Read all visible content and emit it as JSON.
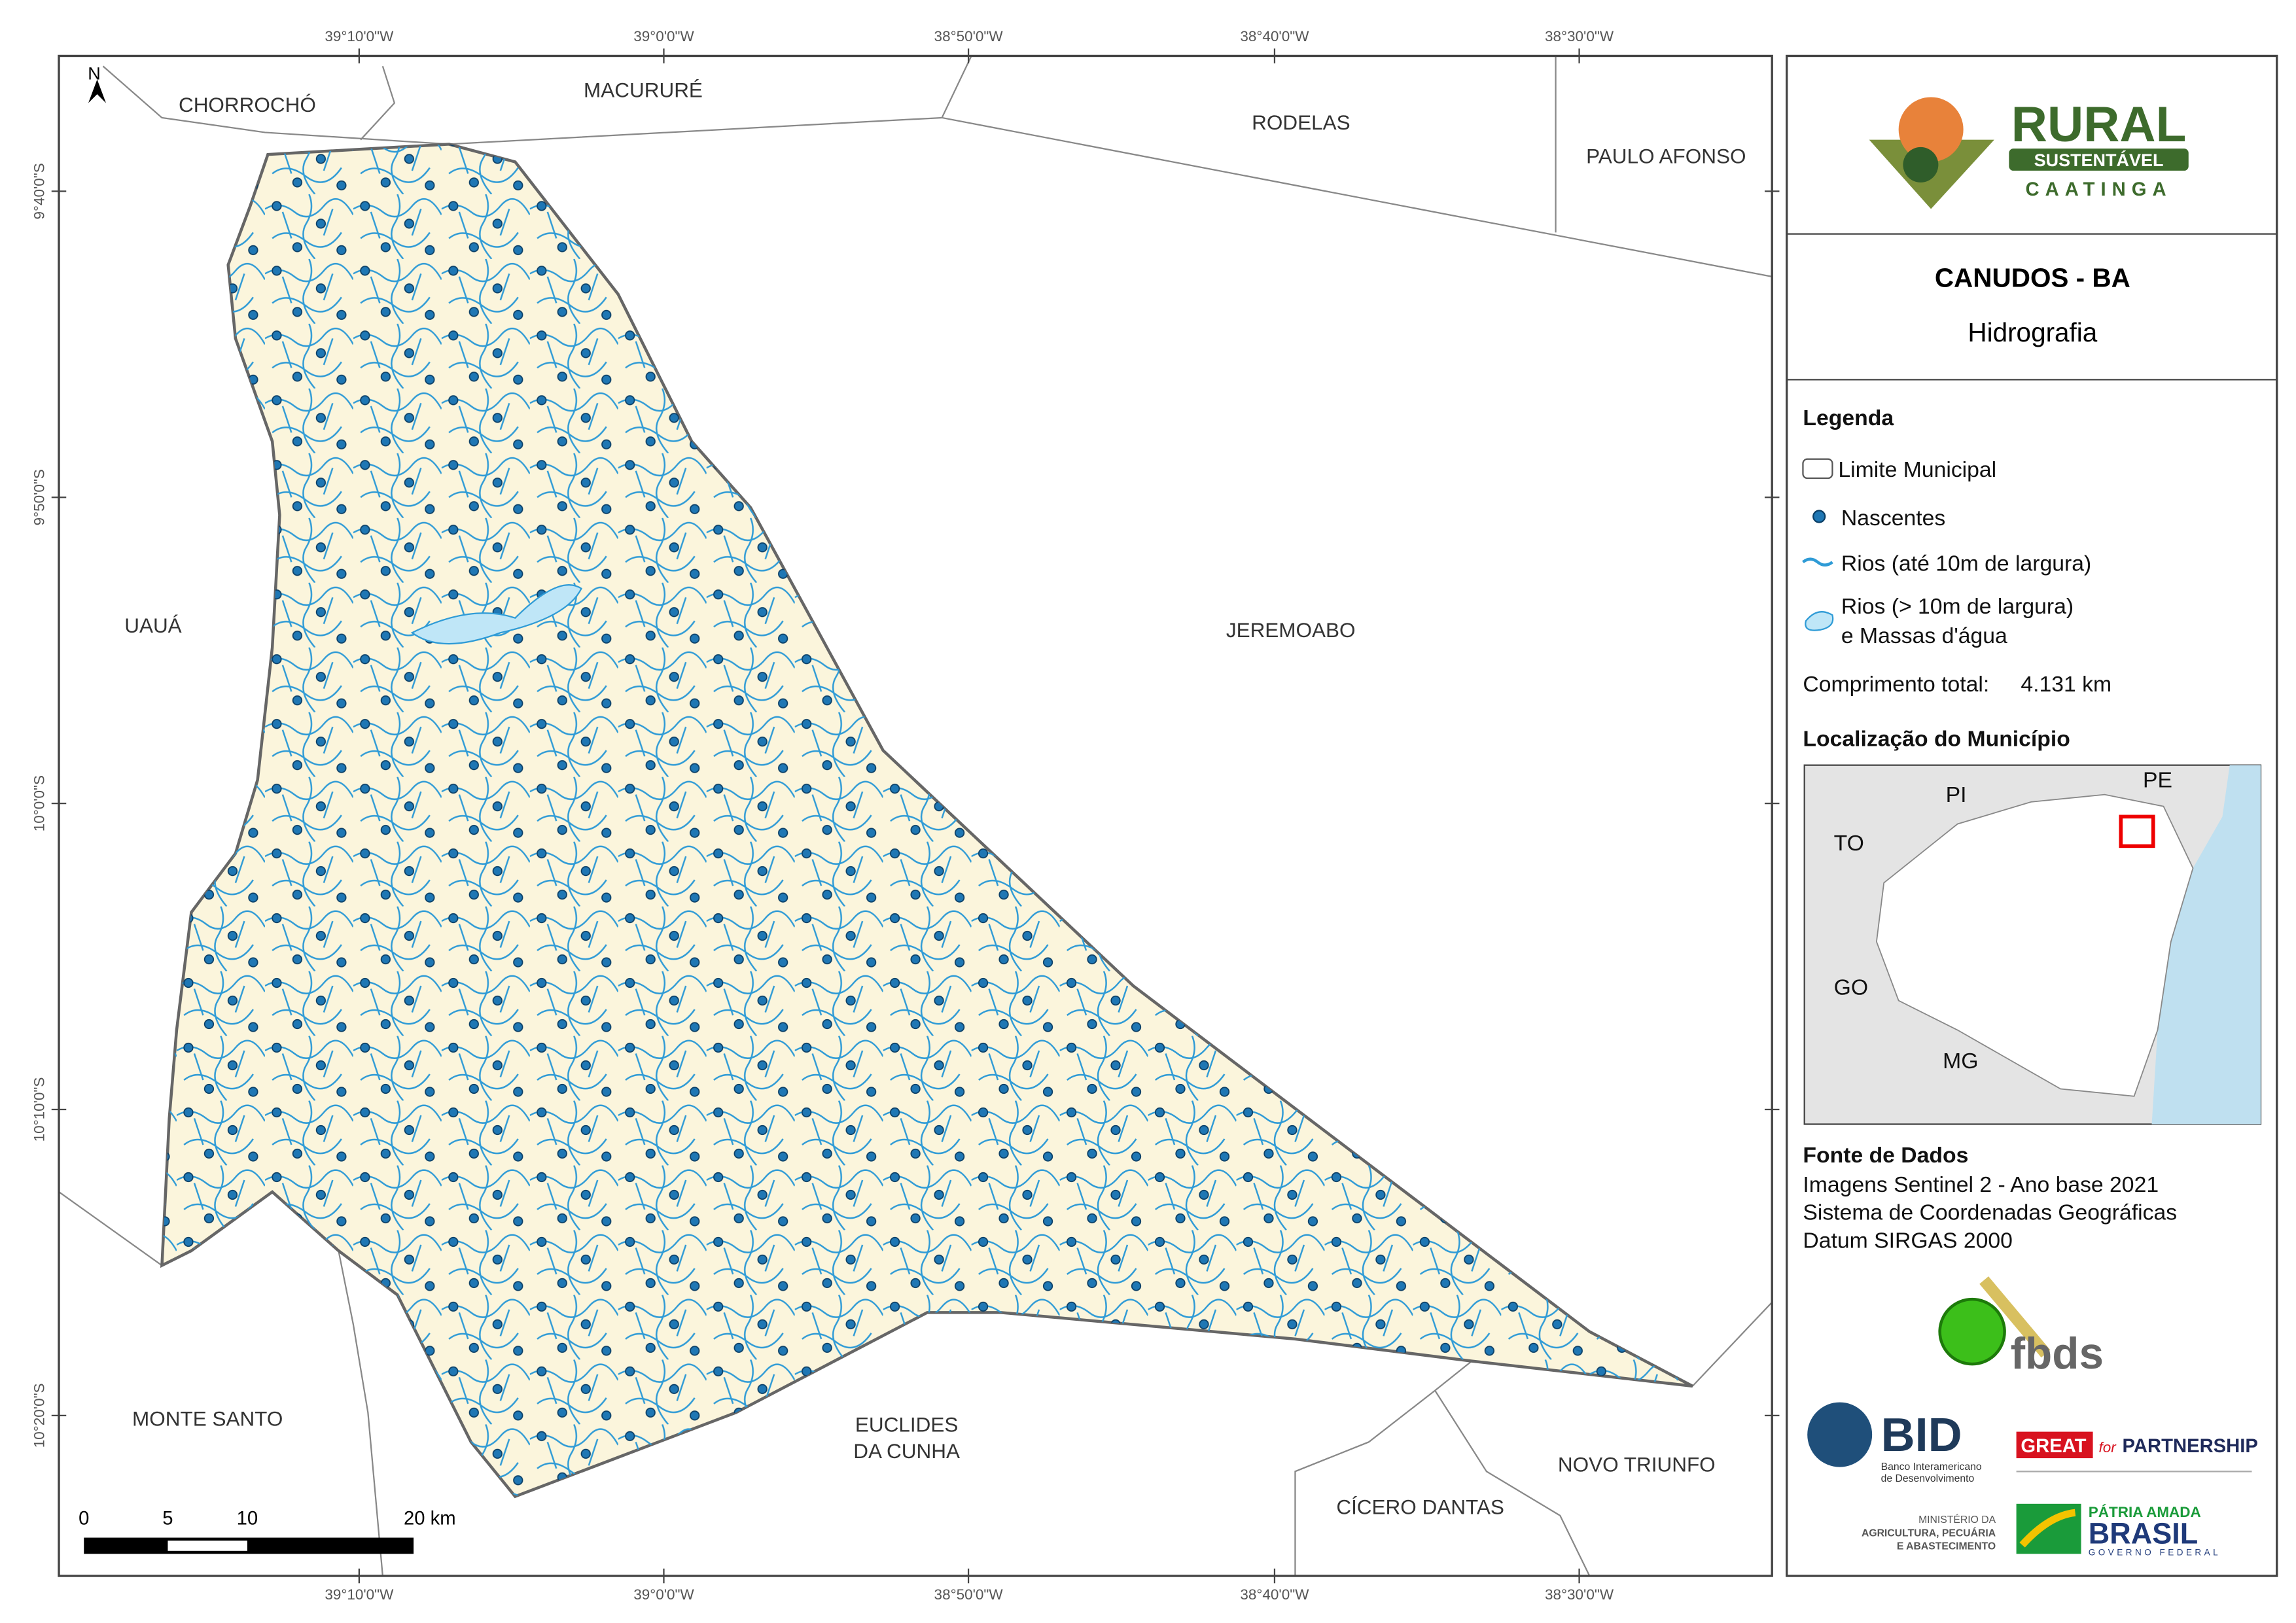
{
  "map": {
    "lon_labels_top": [
      "39°10'0\"W",
      "39°0'0\"W",
      "38°50'0\"W",
      "38°40'0\"W",
      "38°30'0\"W"
    ],
    "lon_labels_bottom": [
      "39°10'0\"W",
      "39°0'0\"W",
      "38°50'0\"W",
      "38°40'0\"W",
      "38°30'0\"W"
    ],
    "lat_labels": [
      "9°40'0\"S",
      "9°50'0\"S",
      "10°0'0\"S",
      "10°10'0\"S",
      "10°20'0\"S"
    ],
    "north": "N",
    "places": [
      "CHORROCHÓ",
      "MACURURÉ",
      "RODELAS",
      "PAULO AFONSO",
      "UAUÁ",
      "JEREMOABO",
      "MONTE SANTO",
      "EUCLIDES",
      "DA CUNHA",
      "NOVO TRIUNFO",
      "CÍCERO DANTAS"
    ],
    "scale": [
      "0",
      "5",
      "10",
      "20 km"
    ]
  },
  "panel": {
    "logo": [
      "RURAL",
      "SUSTENTÁVEL",
      "CAATINGA"
    ],
    "title": "CANUDOS - BA",
    "subtitle": "Hidrografia",
    "legend": {
      "title": "Legenda",
      "items": [
        "Limite Municipal",
        "Nascentes",
        "Rios (até 10m de largura)",
        "Rios (> 10m de largura)",
        "e Massas d'água"
      ]
    },
    "total": {
      "label": "Comprimento total:",
      "value": "4.131 km"
    },
    "location": {
      "title": "Localização do Município",
      "states": [
        "PI",
        "PE",
        "TO",
        "GO",
        "MG"
      ]
    },
    "sources": {
      "title": "Fonte de Dados",
      "lines": [
        "Imagens Sentinel 2 - Ano base 2021",
        "Sistema de Coordenadas Geográficas",
        "Datum SIRGAS 2000"
      ]
    },
    "logos": {
      "fbds": "fbds",
      "bid": [
        "BID",
        "Banco Interamericano",
        "de Desenvolvimento"
      ],
      "great": [
        "GREAT",
        "for",
        "PARTNERSHIP"
      ],
      "ministry": [
        "MINISTÉRIO DA",
        "AGRICULTURA, PECUÁRIA",
        "E ABASTECIMENTO"
      ],
      "brasil": [
        "PÁTRIA AMADA",
        "BRASIL",
        "GOVERNO FEDERAL"
      ]
    }
  }
}
